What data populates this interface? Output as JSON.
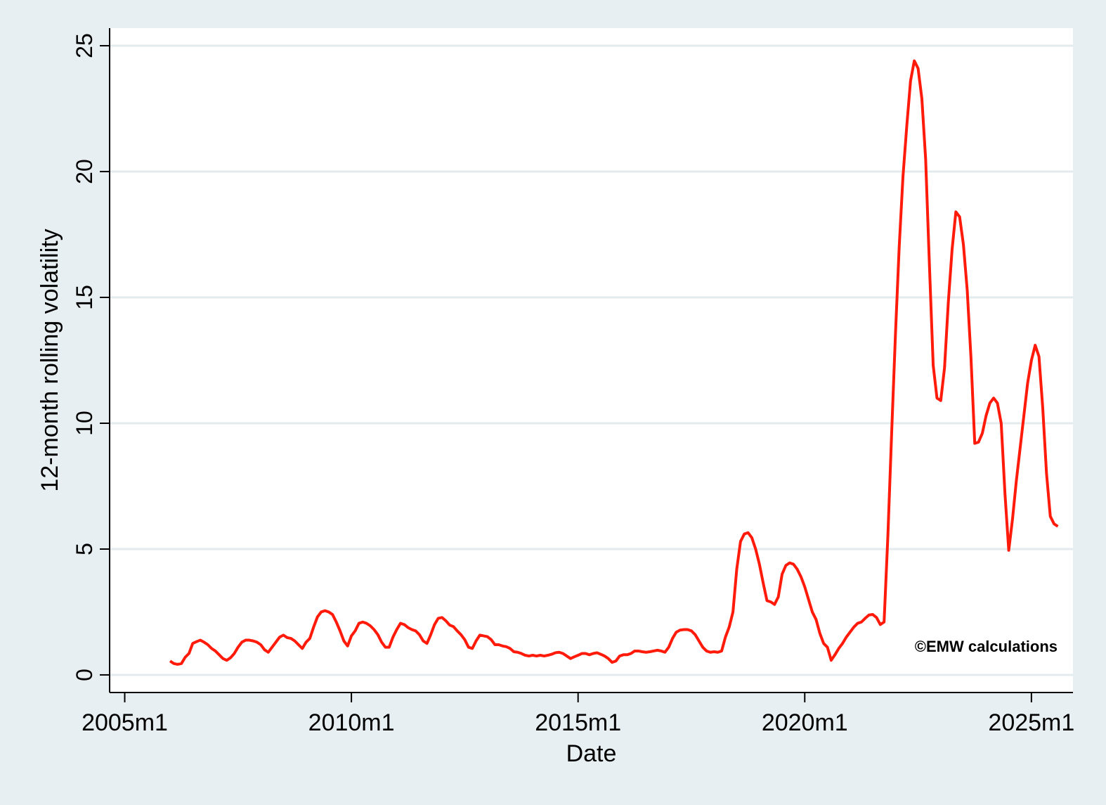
{
  "chart_data": {
    "type": "line",
    "x_label": "Date",
    "y_label": "12-month rolling volatility",
    "annotation": "©EMW calculations",
    "color": "#ff1a0a",
    "grid": true,
    "xlim": [
      "2004m9",
      "2025m12"
    ],
    "xticks": [
      "2005m1",
      "2010m1",
      "2015m1",
      "2020m1",
      "2025m1"
    ],
    "ylim": [
      -0.7,
      25.7
    ],
    "yticks": [
      0,
      5,
      10,
      15,
      20,
      25
    ],
    "x": [
      "2006m1",
      "2006m2",
      "2006m3",
      "2006m4",
      "2006m5",
      "2006m6",
      "2006m7",
      "2006m8",
      "2006m9",
      "2006m10",
      "2006m11",
      "2006m12",
      "2007m1",
      "2007m2",
      "2007m3",
      "2007m4",
      "2007m5",
      "2007m6",
      "2007m7",
      "2007m8",
      "2007m9",
      "2007m10",
      "2007m11",
      "2007m12",
      "2008m1",
      "2008m2",
      "2008m3",
      "2008m4",
      "2008m5",
      "2008m6",
      "2008m7",
      "2008m8",
      "2008m9",
      "2008m10",
      "2008m11",
      "2008m12",
      "2009m1",
      "2009m2",
      "2009m3",
      "2009m4",
      "2009m5",
      "2009m6",
      "2009m7",
      "2009m8",
      "2009m9",
      "2009m10",
      "2009m11",
      "2009m12",
      "2010m1",
      "2010m2",
      "2010m3",
      "2010m4",
      "2010m5",
      "2010m6",
      "2010m7",
      "2010m8",
      "2010m9",
      "2010m10",
      "2010m11",
      "2010m12",
      "2011m1",
      "2011m2",
      "2011m3",
      "2011m4",
      "2011m5",
      "2011m6",
      "2011m7",
      "2011m8",
      "2011m9",
      "2011m10",
      "2011m11",
      "2011m12",
      "2012m1",
      "2012m2",
      "2012m3",
      "2012m4",
      "2012m5",
      "2012m6",
      "2012m7",
      "2012m8",
      "2012m9",
      "2012m10",
      "2012m11",
      "2012m12",
      "2013m1",
      "2013m2",
      "2013m3",
      "2013m4",
      "2013m5",
      "2013m6",
      "2013m7",
      "2013m8",
      "2013m9",
      "2013m10",
      "2013m11",
      "2013m12",
      "2014m1",
      "2014m2",
      "2014m3",
      "2014m4",
      "2014m5",
      "2014m6",
      "2014m7",
      "2014m8",
      "2014m9",
      "2014m10",
      "2014m11",
      "2014m12",
      "2015m1",
      "2015m2",
      "2015m3",
      "2015m4",
      "2015m5",
      "2015m6",
      "2015m7",
      "2015m8",
      "2015m9",
      "2015m10",
      "2015m11",
      "2015m12",
      "2016m1",
      "2016m2",
      "2016m3",
      "2016m4",
      "2016m5",
      "2016m6",
      "2016m7",
      "2016m8",
      "2016m9",
      "2016m10",
      "2016m11",
      "2016m12",
      "2017m1",
      "2017m2",
      "2017m3",
      "2017m4",
      "2017m5",
      "2017m6",
      "2017m7",
      "2017m8",
      "2017m9",
      "2017m10",
      "2017m11",
      "2017m12",
      "2018m1",
      "2018m2",
      "2018m3",
      "2018m4",
      "2018m5",
      "2018m6",
      "2018m7",
      "2018m8",
      "2018m9",
      "2018m10",
      "2018m11",
      "2018m12",
      "2019m1",
      "2019m2",
      "2019m3",
      "2019m4",
      "2019m5",
      "2019m6",
      "2019m7",
      "2019m8",
      "2019m9",
      "2019m10",
      "2019m11",
      "2019m12",
      "2020m1",
      "2020m2",
      "2020m3",
      "2020m4",
      "2020m5",
      "2020m6",
      "2020m7",
      "2020m8",
      "2020m9",
      "2020m10",
      "2020m11",
      "2020m12",
      "2021m1",
      "2021m2",
      "2021m3",
      "2021m4",
      "2021m5",
      "2021m6",
      "2021m7",
      "2021m8",
      "2021m9",
      "2021m10",
      "2021m11",
      "2021m12",
      "2022m1",
      "2022m2",
      "2022m3",
      "2022m4",
      "2022m5",
      "2022m6",
      "2022m7",
      "2022m8",
      "2022m9",
      "2022m10",
      "2022m11",
      "2022m12",
      "2023m1",
      "2023m2",
      "2023m3",
      "2023m4",
      "2023m5",
      "2023m6",
      "2023m7",
      "2023m8",
      "2023m9",
      "2023m10",
      "2023m11",
      "2023m12",
      "2024m1",
      "2024m2",
      "2024m3",
      "2024m4",
      "2024m5",
      "2024m6",
      "2024m7",
      "2024m8",
      "2024m9",
      "2024m10",
      "2024m11",
      "2024m12",
      "2025m1",
      "2025m2",
      "2025m3",
      "2025m4",
      "2025m5",
      "2025m6",
      "2025m7",
      "2025m8"
    ],
    "values": [
      0.55,
      0.45,
      0.42,
      0.45,
      0.7,
      0.85,
      1.25,
      1.32,
      1.38,
      1.3,
      1.2,
      1.05,
      0.95,
      0.8,
      0.65,
      0.58,
      0.68,
      0.85,
      1.1,
      1.3,
      1.38,
      1.38,
      1.35,
      1.3,
      1.2,
      1.0,
      0.9,
      1.1,
      1.3,
      1.5,
      1.58,
      1.48,
      1.45,
      1.35,
      1.2,
      1.05,
      1.3,
      1.45,
      1.9,
      2.3,
      2.5,
      2.55,
      2.5,
      2.4,
      2.1,
      1.75,
      1.35,
      1.15,
      1.55,
      1.75,
      2.05,
      2.1,
      2.05,
      1.95,
      1.8,
      1.6,
      1.3,
      1.1,
      1.1,
      1.5,
      1.8,
      2.05,
      2.0,
      1.88,
      1.8,
      1.75,
      1.6,
      1.35,
      1.25,
      1.6,
      2.0,
      2.25,
      2.28,
      2.15,
      1.98,
      1.92,
      1.75,
      1.6,
      1.4,
      1.1,
      1.05,
      1.35,
      1.58,
      1.55,
      1.52,
      1.4,
      1.2,
      1.2,
      1.15,
      1.12,
      1.05,
      0.92,
      0.9,
      0.85,
      0.78,
      0.75,
      0.78,
      0.75,
      0.78,
      0.75,
      0.78,
      0.82,
      0.88,
      0.9,
      0.85,
      0.75,
      0.65,
      0.72,
      0.78,
      0.85,
      0.85,
      0.8,
      0.85,
      0.88,
      0.82,
      0.75,
      0.65,
      0.5,
      0.55,
      0.75,
      0.8,
      0.8,
      0.85,
      0.95,
      0.95,
      0.92,
      0.9,
      0.92,
      0.95,
      0.98,
      0.95,
      0.9,
      1.1,
      1.45,
      1.7,
      1.78,
      1.8,
      1.8,
      1.75,
      1.6,
      1.35,
      1.1,
      0.95,
      0.9,
      0.92,
      0.9,
      0.95,
      1.5,
      1.9,
      2.5,
      4.2,
      5.3,
      5.6,
      5.65,
      5.45,
      5.0,
      4.4,
      3.65,
      2.95,
      2.9,
      2.8,
      3.1,
      4.0,
      4.35,
      4.45,
      4.4,
      4.2,
      3.9,
      3.5,
      3.0,
      2.5,
      2.2,
      1.65,
      1.25,
      1.1,
      0.58,
      0.8,
      1.05,
      1.25,
      1.5,
      1.7,
      1.9,
      2.05,
      2.1,
      2.25,
      2.38,
      2.4,
      2.28,
      2.0,
      2.1,
      5.5,
      9.6,
      13.5,
      17.0,
      19.8,
      21.8,
      23.6,
      24.4,
      24.1,
      22.9,
      20.5,
      16.3,
      12.3,
      11.0,
      10.9,
      12.2,
      14.8,
      16.9,
      18.4,
      18.2,
      17.1,
      15.3,
      12.6,
      9.2,
      9.25,
      9.6,
      10.3,
      10.8,
      11.0,
      10.8,
      10.0,
      7.2,
      4.95,
      6.2,
      7.7,
      9.0,
      10.3,
      11.6,
      12.5,
      13.1,
      12.65,
      10.6,
      8.0,
      6.3,
      6.0,
      5.9
    ]
  }
}
